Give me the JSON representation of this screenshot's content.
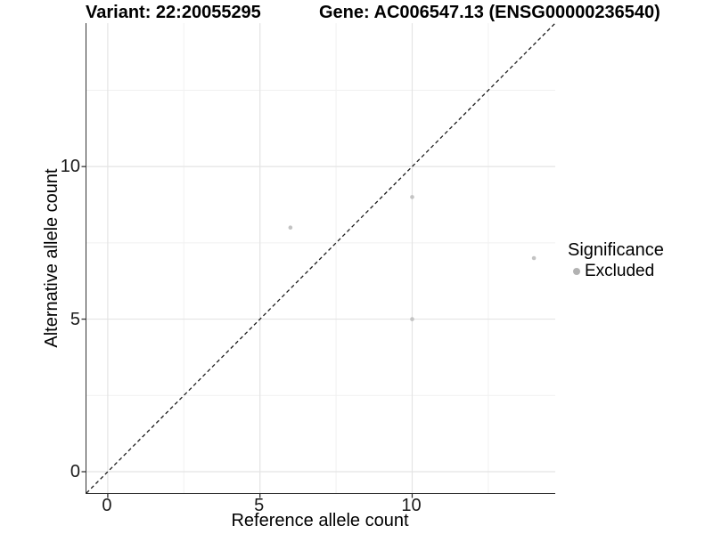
{
  "titles": {
    "variant": "Variant: 22:20055295",
    "gene": "Gene: AC006547.13 (ENSG00000236540)"
  },
  "legend": {
    "title": "Significance",
    "items": [
      {
        "label": "Excluded",
        "color": "#b2b2b2"
      }
    ]
  },
  "chart_data": {
    "type": "scatter",
    "title_left": "Variant: 22:20055295",
    "title_right": "Gene: AC006547.13 (ENSG00000236540)",
    "xlabel": "Reference allele count",
    "ylabel": "Alternative allele count",
    "xlim": [
      -0.7,
      14.7
    ],
    "ylim": [
      -0.7,
      14.7
    ],
    "x_ticks": [
      0,
      5,
      10
    ],
    "y_ticks": [
      0,
      5,
      10
    ],
    "x_minor_ticks": [
      2.5,
      7.5,
      12.5
    ],
    "y_minor_ticks": [
      2.5,
      7.5,
      12.5
    ],
    "grid": "major+minor",
    "legend_position": "right",
    "reference_line": {
      "type": "identity",
      "style": "dashed"
    },
    "series": [
      {
        "name": "Excluded",
        "color": "#c3c3c3",
        "points": [
          {
            "x": 6,
            "y": 8
          },
          {
            "x": 10,
            "y": 9
          },
          {
            "x": 10,
            "y": 5
          },
          {
            "x": 14,
            "y": 7
          }
        ]
      }
    ]
  },
  "colors": {
    "background": "#ffffff",
    "grid_major": "#e4e4e4",
    "grid_minor": "#f1f1f1",
    "axis_line": "#333333",
    "tick_text": "#1a1a1a",
    "title_text": "#000000",
    "point": "#c3c3c3",
    "legend_dot": "#b2b2b2",
    "dashed_line": "#1c1c1c"
  }
}
